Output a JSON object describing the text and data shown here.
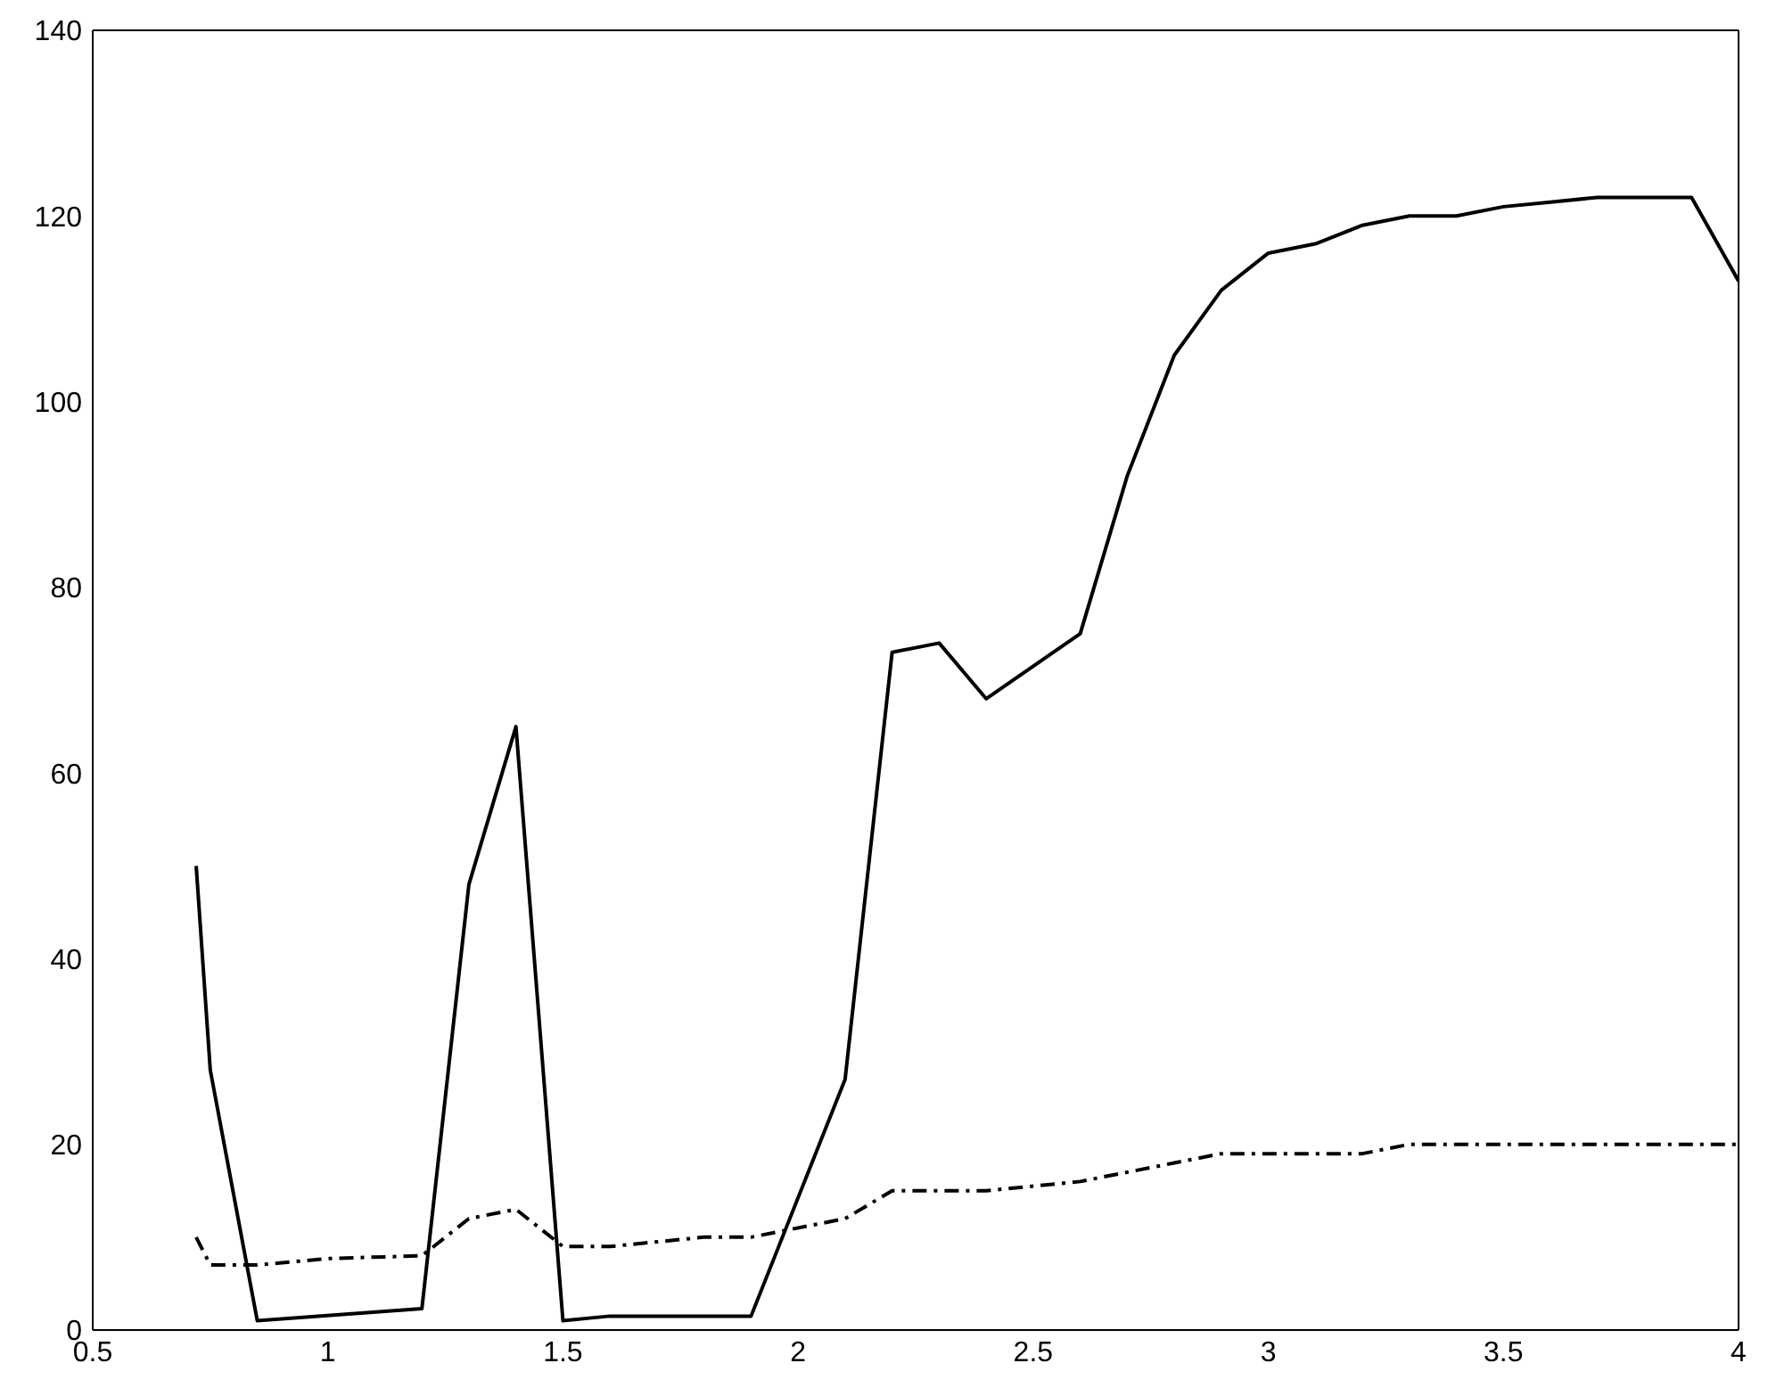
{
  "chart_data": {
    "type": "line",
    "xlim": [
      0.5,
      4
    ],
    "xticks": [
      0.5,
      1,
      1.5,
      2,
      2.5,
      3,
      3.5,
      4
    ],
    "ylim": [
      0,
      140
    ],
    "yticks": [
      0,
      20,
      40,
      60,
      80,
      100,
      120,
      140
    ],
    "legend": false,
    "marker": "none",
    "series": [
      {
        "color": "#000000",
        "line_style": "solid",
        "x": [
          0.72,
          0.75,
          0.85,
          1.2,
          1.3,
          1.4,
          1.5,
          1.6,
          1.9,
          2.1,
          2.2,
          2.3,
          2.4,
          2.6,
          2.7,
          2.8,
          2.9,
          3.0,
          3.1,
          3.2,
          3.3,
          3.4,
          3.5,
          3.6,
          3.7,
          3.8,
          3.9,
          4.0
        ],
        "values": [
          50,
          28,
          1,
          2.3,
          48,
          65,
          1,
          1.5,
          1.5,
          27,
          73,
          74,
          68,
          75,
          92,
          105,
          112,
          116,
          117,
          119,
          120,
          120,
          121,
          121.5,
          122,
          122,
          122,
          113
        ]
      },
      {
        "color": "#000000",
        "line_style": "dashed-dotted",
        "x": [
          0.72,
          0.75,
          0.85,
          1.0,
          1.2,
          1.3,
          1.4,
          1.5,
          1.6,
          1.8,
          1.9,
          2.1,
          2.2,
          2.4,
          2.6,
          2.8,
          2.9,
          3.2,
          3.3,
          4.0
        ],
        "values": [
          10,
          7,
          7,
          7.7,
          8,
          12,
          13,
          9,
          9,
          10,
          10,
          12,
          15,
          15,
          16,
          18,
          19,
          19,
          20,
          20
        ]
      }
    ]
  }
}
